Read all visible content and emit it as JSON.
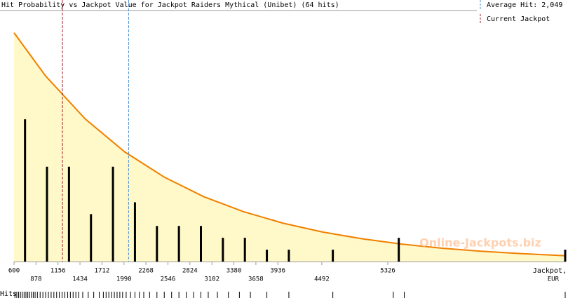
{
  "chart_data": {
    "type": "bar",
    "title": "Hit Probability vs Jackpot Value for Jackpot Raiders Mythical (Unibet) (64 hits)",
    "x": [
      739,
      1017,
      1295,
      1573,
      1851,
      2129,
      2407,
      2685,
      2963,
      3241,
      3519,
      3797,
      4075,
      4631,
      5465,
      7569
    ],
    "values": [
      12,
      8,
      8,
      4,
      8,
      5,
      3,
      3,
      3,
      2,
      2,
      1,
      1,
      1,
      2,
      1
    ],
    "color": "#000000",
    "xlim": [
      600,
      7578
    ],
    "ylim": [
      0,
      21
    ],
    "xticks": [
      600,
      878,
      1156,
      1434,
      1712,
      1990,
      2268,
      2546,
      2824,
      3102,
      3380,
      3658,
      3936,
      4492,
      5326
    ],
    "x_label": "Jackpot,",
    "x_unit": "EUR",
    "curve": {
      "x": [
        600,
        1000,
        1500,
        2000,
        2500,
        3000,
        3500,
        4000,
        4500,
        5000,
        5500,
        6000,
        6500,
        7000,
        7578
      ],
      "values": [
        19.3,
        15.65,
        12.03,
        9.25,
        7.12,
        5.47,
        4.21,
        3.24,
        2.49,
        1.92,
        1.47,
        1.13,
        0.87,
        0.67,
        0.49
      ],
      "color": "#f08000",
      "fill": "#fff8c8"
    },
    "average_hit": {
      "label": "Average Hit: 2,049",
      "value": 2049,
      "color": "#4a90d0"
    },
    "current_jackpot": {
      "label": "Current Jackpot",
      "value": 1212,
      "color": "#a0202a"
    },
    "rug_label": "Hits",
    "watermark": "Online-Jackpots.biz"
  }
}
